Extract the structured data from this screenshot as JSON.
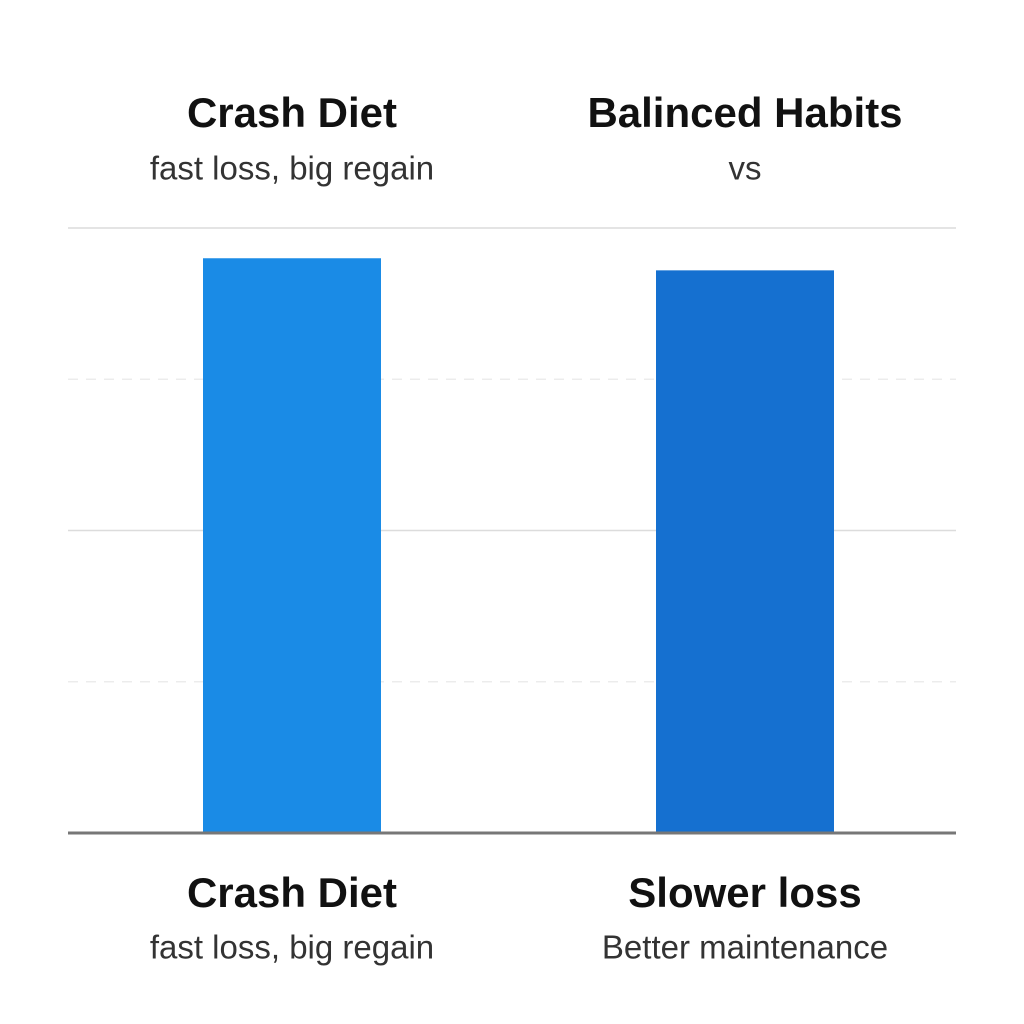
{
  "chart_data": {
    "type": "bar",
    "headers": [
      {
        "title": "Crash Diet",
        "subtitle": "fast loss, big regain"
      },
      {
        "title": "Balinced Habits",
        "subtitle": "vs"
      }
    ],
    "categories": [
      "Crash Diet",
      "Slower loss"
    ],
    "category_subtitles": [
      "fast loss, big regain",
      "Better maintenance"
    ],
    "values": [
      95,
      93
    ],
    "colors": [
      "#1a8be6",
      "#1570d0"
    ],
    "ylim": [
      0,
      100
    ],
    "yticks": [
      0,
      25,
      50,
      75,
      100
    ],
    "grid": true
  }
}
